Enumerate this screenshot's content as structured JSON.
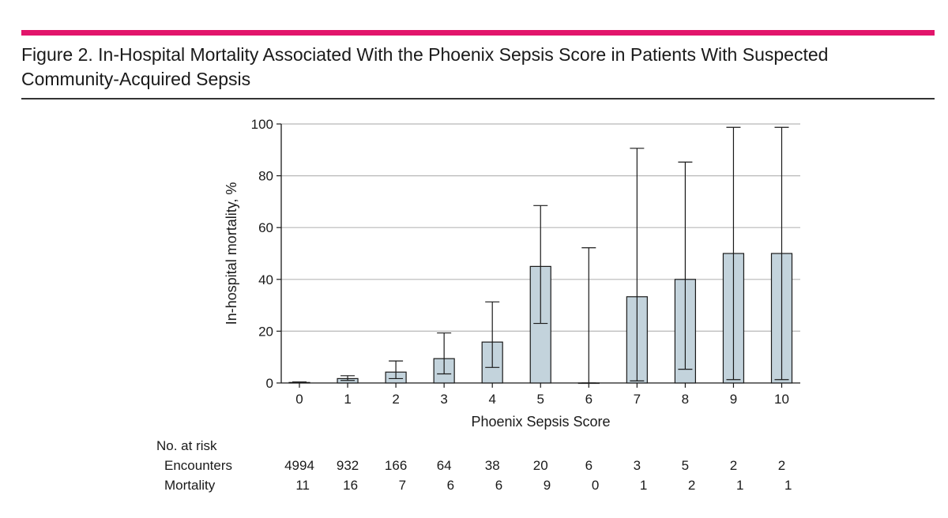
{
  "figure": {
    "title_line1": "Figure 2. In-Hospital Mortality Associated With the Phoenix Sepsis Score in Patients With Suspected",
    "title_line2": "Community-Acquired Sepsis"
  },
  "chart_data": {
    "type": "bar",
    "title": "In-Hospital Mortality Associated With the Phoenix Sepsis Score in Patients With Suspected Community-Acquired Sepsis",
    "xlabel": "Phoenix Sepsis Score",
    "ylabel": "In-hospital mortality, %",
    "ylim": [
      0,
      100
    ],
    "yticks": [
      0,
      20,
      40,
      60,
      80,
      100
    ],
    "grid": true,
    "categories": [
      "0",
      "1",
      "2",
      "3",
      "4",
      "5",
      "6",
      "7",
      "8",
      "9",
      "10"
    ],
    "values": [
      0.2,
      1.7,
      4.2,
      9.4,
      15.8,
      45,
      0,
      33.3,
      40,
      50,
      50
    ],
    "ci_lower": [
      0.1,
      1.0,
      1.7,
      3.5,
      6.0,
      23,
      0,
      0.8,
      5.3,
      1.3,
      1.3
    ],
    "ci_upper": [
      0.4,
      2.8,
      8.5,
      19.3,
      31.3,
      68.5,
      52.2,
      90.6,
      85.3,
      98.7,
      98.7
    ],
    "risk_table": {
      "header": "No. at risk",
      "rows": [
        {
          "label": "Encounters",
          "values": [
            "4994",
            "932",
            "166",
            "64",
            "38",
            "20",
            "6",
            "3",
            "5",
            "2",
            "2"
          ]
        },
        {
          "label": "Mortality",
          "values": [
            "11",
            "16",
            "7",
            "6",
            "6",
            "9",
            "0",
            "1",
            "2",
            "1",
            "1"
          ]
        }
      ]
    }
  },
  "colors": {
    "accent_rule": "#e2156b",
    "bar_fill": "#c3d3dc",
    "grid": "#b8b8b8",
    "ink": "#1a1a1a"
  }
}
